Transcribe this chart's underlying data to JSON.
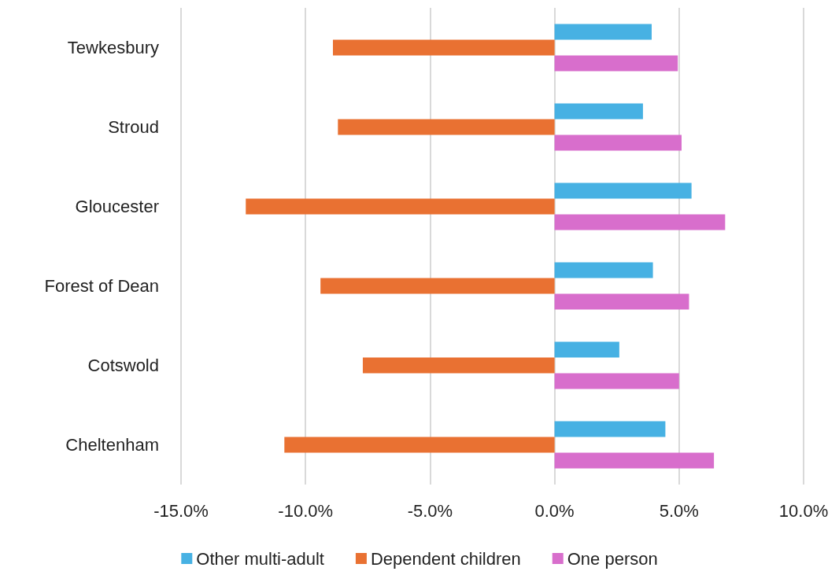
{
  "chart_data": {
    "type": "bar",
    "orientation": "horizontal",
    "categories": [
      "Tewkesbury",
      "Stroud",
      "Gloucester",
      "Forest of Dean",
      "Cotswold",
      "Cheltenham"
    ],
    "series": [
      {
        "name": "Other multi-adult",
        "color": "#47b1e3",
        "values": [
          3.9,
          3.55,
          5.5,
          3.95,
          2.6,
          4.45
        ]
      },
      {
        "name": "Dependent children",
        "color": "#e97132",
        "values": [
          -8.9,
          -8.7,
          -12.4,
          -9.4,
          -7.7,
          -10.85
        ]
      },
      {
        "name": "One person",
        "color": "#d86ecc",
        "values": [
          4.95,
          5.1,
          6.85,
          5.4,
          5.0,
          6.4
        ]
      }
    ],
    "xlim": [
      -15,
      10
    ],
    "xticks": [
      {
        "value": -15,
        "label": "-15.0%"
      },
      {
        "value": -10,
        "label": "-10.0%"
      },
      {
        "value": -5,
        "label": "-5.0%"
      },
      {
        "value": 0,
        "label": "0.0%"
      },
      {
        "value": 5,
        "label": "5.0%"
      },
      {
        "value": 10,
        "label": "10.0%"
      }
    ],
    "grid": "x",
    "legend": "bottom"
  }
}
